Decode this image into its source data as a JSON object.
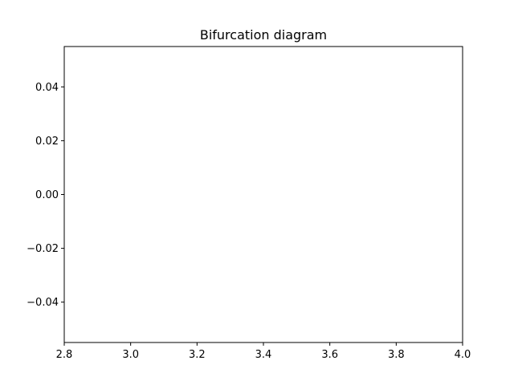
{
  "chart_data": {
    "type": "scatter",
    "title": "Bifurcation diagram",
    "xlabel": "",
    "ylabel": "",
    "xlim": [
      2.8,
      4.0
    ],
    "ylim": [
      -0.055,
      0.055
    ],
    "x_ticks": [
      2.8,
      3.0,
      3.2,
      3.4,
      3.6,
      3.8,
      4.0
    ],
    "x_tick_labels": [
      "2.8",
      "3.0",
      "3.2",
      "3.4",
      "3.6",
      "3.8",
      "4.0"
    ],
    "y_ticks": [
      0.04,
      0.02,
      0.0,
      -0.02,
      -0.04
    ],
    "y_tick_labels": [
      "0.04",
      "0.02",
      "0.00",
      "−0.02",
      "−0.04"
    ],
    "series": [
      {
        "x": [],
        "y": []
      }
    ],
    "grid": false,
    "colors": {
      "axes": "#000000",
      "background": "#ffffff"
    }
  }
}
